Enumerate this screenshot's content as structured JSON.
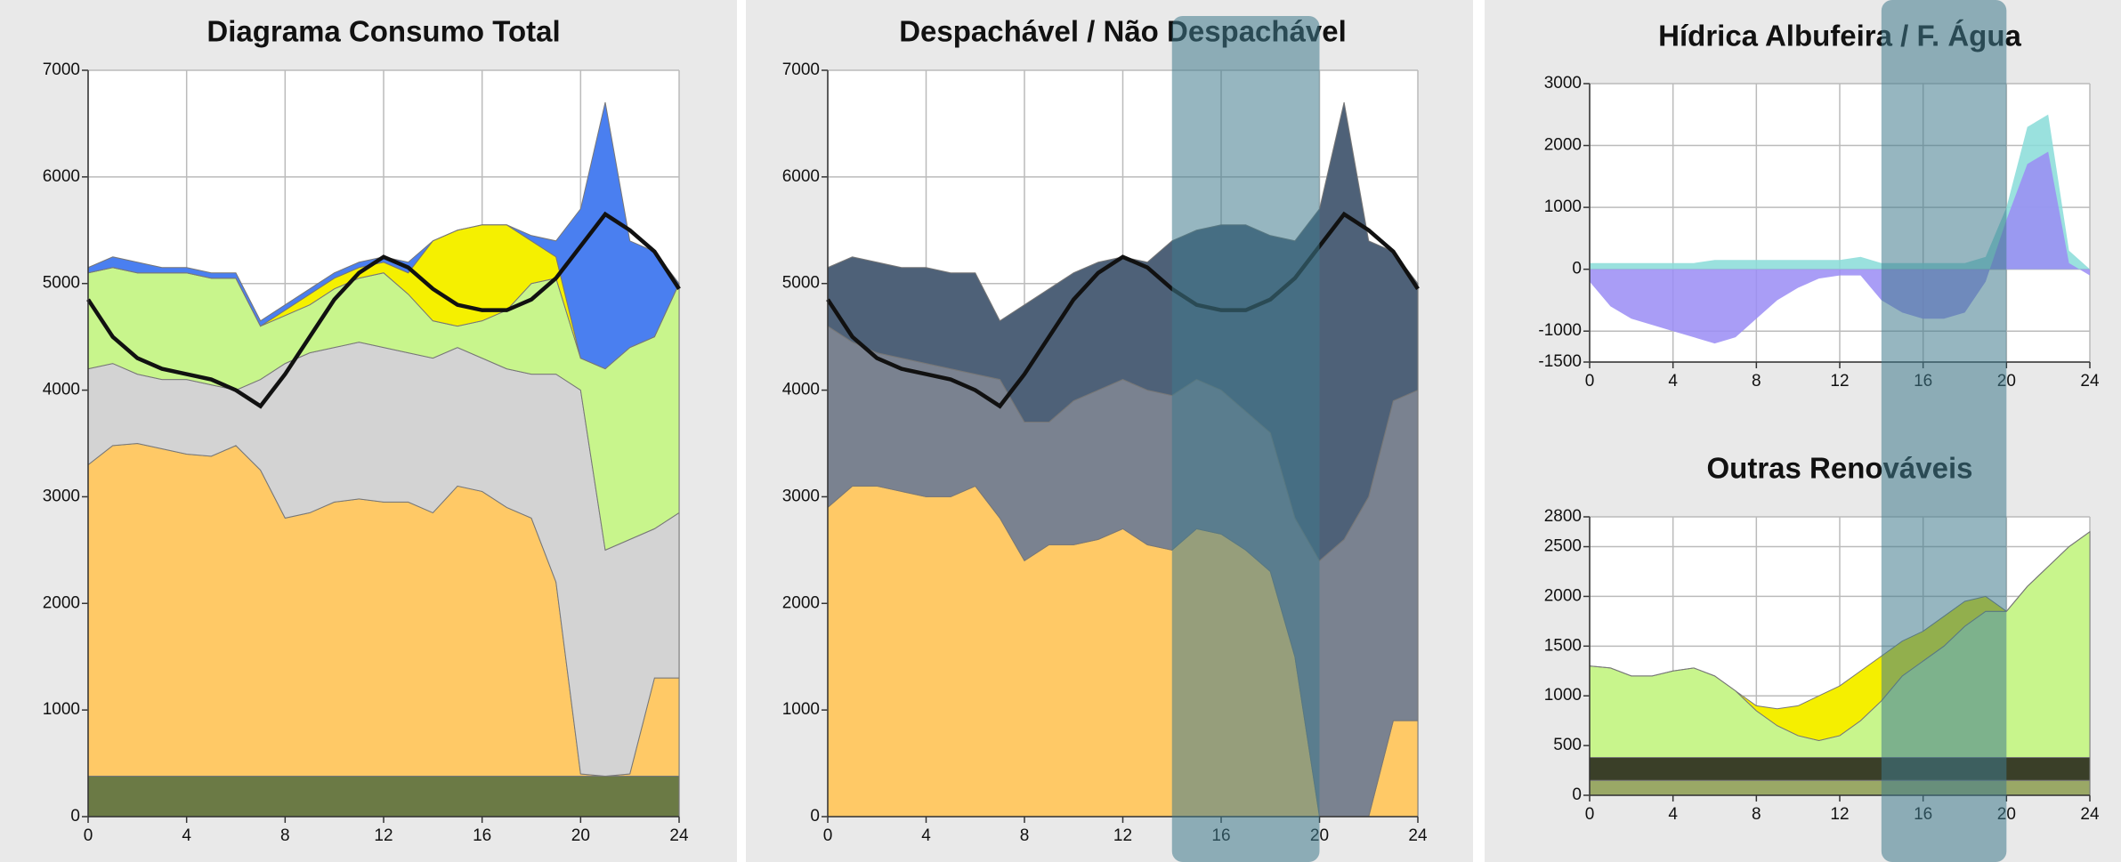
{
  "chart_data": [
    {
      "type": "area",
      "stacked": true,
      "title": "Diagrama Consumo Total",
      "x": [
        0,
        1,
        2,
        3,
        4,
        5,
        6,
        7,
        8,
        9,
        10,
        11,
        12,
        13,
        14,
        15,
        16,
        17,
        18,
        19,
        20,
        21,
        22,
        23,
        24
      ],
      "xlim": [
        0,
        24
      ],
      "xticks": [
        0,
        4,
        8,
        12,
        16,
        20,
        24
      ],
      "ylim": [
        0,
        7000
      ],
      "yticks": [
        0,
        1000,
        2000,
        3000,
        4000,
        5000,
        6000,
        7000
      ],
      "grid": true,
      "series": [
        {
          "color": "#6b7a45",
          "values": [
            380,
            380,
            380,
            380,
            380,
            380,
            380,
            380,
            380,
            380,
            380,
            380,
            380,
            380,
            380,
            380,
            380,
            380,
            380,
            380,
            380,
            380,
            380,
            380,
            380
          ]
        },
        {
          "color": "#ffc966",
          "values": [
            2920,
            3100,
            3120,
            3070,
            3020,
            3000,
            3100,
            2870,
            2420,
            2470,
            2570,
            2600,
            2570,
            2570,
            2470,
            2720,
            2670,
            2520,
            2420,
            1820,
            20,
            0,
            20,
            920,
            920
          ]
        },
        {
          "color": "#d3d3d3",
          "values": [
            900,
            770,
            650,
            650,
            700,
            670,
            520,
            850,
            1450,
            1500,
            1450,
            1470,
            1450,
            1400,
            1450,
            1300,
            1250,
            1300,
            1350,
            1950,
            3600,
            2120,
            2200,
            1400,
            1550
          ]
        },
        {
          "color": "#c8f58c",
          "values": [
            900,
            900,
            950,
            1000,
            1000,
            1000,
            1050,
            500,
            450,
            450,
            550,
            600,
            700,
            550,
            350,
            200,
            350,
            550,
            850,
            900,
            300,
            1700,
            1800,
            1800,
            2150
          ]
        },
        {
          "color": "#f5f000",
          "values": [
            0,
            0,
            0,
            0,
            0,
            0,
            0,
            0,
            50,
            100,
            100,
            100,
            100,
            200,
            750,
            900,
            900,
            800,
            400,
            200,
            0,
            0,
            0,
            0,
            0
          ]
        },
        {
          "color": "#4a7ff0",
          "values": [
            50,
            100,
            100,
            50,
            50,
            50,
            50,
            50,
            50,
            50,
            50,
            50,
            50,
            100,
            0,
            0,
            0,
            0,
            50,
            150,
            1400,
            2500,
            1000,
            800,
            0
          ]
        },
        {
          "type": "line",
          "color": "#111111",
          "values": [
            4850,
            4500,
            4300,
            4200,
            4150,
            4100,
            4000,
            3850,
            4150,
            4500,
            4850,
            5100,
            5250,
            5150,
            4950,
            4800,
            4750,
            4750,
            4850,
            5050,
            5350,
            5650,
            5500,
            5300,
            4950
          ]
        }
      ]
    },
    {
      "type": "area",
      "stacked": true,
      "title": "Despachável / Não Despachável",
      "x": [
        0,
        1,
        2,
        3,
        4,
        5,
        6,
        7,
        8,
        9,
        10,
        11,
        12,
        13,
        14,
        15,
        16,
        17,
        18,
        19,
        20,
        21,
        22,
        23,
        24
      ],
      "xlim": [
        0,
        24
      ],
      "xticks": [
        0,
        4,
        8,
        12,
        16,
        20,
        24
      ],
      "ylim": [
        0,
        7000
      ],
      "yticks": [
        0,
        1000,
        2000,
        3000,
        4000,
        5000,
        6000,
        7000
      ],
      "grid": true,
      "series": [
        {
          "color": "#ffc966",
          "values": [
            2900,
            3100,
            3100,
            3050,
            3000,
            3000,
            3100,
            2800,
            2400,
            2550,
            2550,
            2600,
            2700,
            2550,
            2500,
            2700,
            2650,
            2500,
            2300,
            1500,
            0,
            0,
            0,
            900,
            900
          ]
        },
        {
          "color": "#7a8290",
          "values": [
            1700,
            1350,
            1250,
            1250,
            1250,
            1200,
            1050,
            1300,
            1300,
            1150,
            1350,
            1400,
            1400,
            1450,
            1450,
            1400,
            1350,
            1300,
            1300,
            1300,
            2400,
            2600,
            3000,
            3000,
            3100
          ]
        },
        {
          "color": "#4e6178",
          "values": [
            550,
            800,
            850,
            850,
            900,
            900,
            950,
            550,
            1100,
            1250,
            1200,
            1200,
            1150,
            1200,
            1450,
            1400,
            1550,
            1750,
            1850,
            2600,
            3300,
            4100,
            2400,
            1400,
            1000
          ]
        },
        {
          "type": "line",
          "color": "#111111",
          "values": [
            4850,
            4500,
            4300,
            4200,
            4150,
            4100,
            4000,
            3850,
            4150,
            4500,
            4850,
            5100,
            5250,
            5150,
            4950,
            4800,
            4750,
            4750,
            4850,
            5050,
            5350,
            5650,
            5500,
            5300,
            4950
          ]
        }
      ]
    },
    {
      "type": "area",
      "stacked": false,
      "title": "Hídrica Albufeira / F. Água",
      "x": [
        0,
        1,
        2,
        3,
        4,
        5,
        6,
        7,
        8,
        9,
        10,
        11,
        12,
        13,
        14,
        15,
        16,
        17,
        18,
        19,
        20,
        21,
        22,
        23,
        24
      ],
      "xlim": [
        0,
        24
      ],
      "xticks": [
        0,
        4,
        8,
        12,
        16,
        20,
        24
      ],
      "ylim": [
        -1500,
        3000
      ],
      "yticks": [
        -1500,
        -1000,
        0,
        1000,
        2000,
        3000
      ],
      "grid": true,
      "series": [
        {
          "color": "#88dcd8",
          "values": [
            100,
            100,
            100,
            100,
            100,
            100,
            150,
            150,
            150,
            150,
            150,
            150,
            150,
            200,
            100,
            100,
            100,
            100,
            100,
            200,
            1000,
            2300,
            2500,
            300,
            0
          ]
        },
        {
          "color": "#9a8cf5",
          "values": [
            -200,
            -600,
            -800,
            -900,
            -1000,
            -1100,
            -1200,
            -1100,
            -800,
            -500,
            -300,
            -150,
            -100,
            -100,
            -500,
            -700,
            -800,
            -800,
            -700,
            -200,
            800,
            1700,
            1900,
            100,
            -100
          ]
        }
      ]
    },
    {
      "type": "area",
      "stacked": true,
      "title": "Outras Renováveis",
      "x": [
        0,
        1,
        2,
        3,
        4,
        5,
        6,
        7,
        8,
        9,
        10,
        11,
        12,
        13,
        14,
        15,
        16,
        17,
        18,
        19,
        20,
        21,
        22,
        23,
        24
      ],
      "xlim": [
        0,
        24
      ],
      "xticks": [
        0,
        4,
        8,
        12,
        16,
        20,
        24
      ],
      "ylim": [
        0,
        2800
      ],
      "yticks": [
        0,
        500,
        1000,
        1500,
        2000,
        2500,
        2800
      ],
      "grid": true,
      "series": [
        {
          "color": "#9aa866",
          "values": [
            150,
            150,
            150,
            150,
            150,
            150,
            150,
            150,
            150,
            150,
            150,
            150,
            150,
            150,
            150,
            150,
            150,
            150,
            150,
            150,
            150,
            150,
            150,
            150,
            150
          ]
        },
        {
          "color": "#3a3f28",
          "values": [
            230,
            230,
            230,
            230,
            230,
            230,
            230,
            230,
            230,
            230,
            230,
            230,
            230,
            230,
            230,
            230,
            230,
            230,
            230,
            230,
            230,
            230,
            230,
            230,
            230
          ]
        },
        {
          "color": "#c8f58c",
          "values": [
            920,
            900,
            820,
            820,
            870,
            900,
            820,
            670,
            470,
            320,
            220,
            170,
            220,
            370,
            570,
            820,
            970,
            1120,
            1320,
            1470,
            1470,
            1720,
            1920,
            2120,
            2270
          ]
        },
        {
          "color": "#f5ef00",
          "values": [
            0,
            0,
            0,
            0,
            0,
            0,
            0,
            0,
            50,
            170,
            300,
            450,
            500,
            500,
            450,
            350,
            300,
            300,
            250,
            150,
            0,
            0,
            0,
            0,
            0
          ]
        }
      ]
    }
  ],
  "selection": {
    "x": [
      14,
      20
    ]
  }
}
